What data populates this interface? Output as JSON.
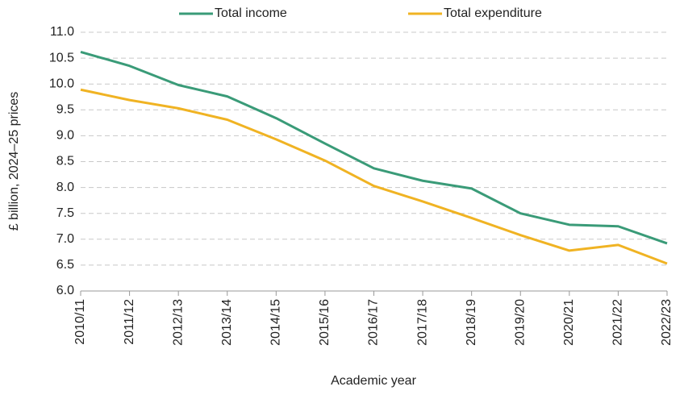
{
  "chart_data": {
    "type": "line",
    "x_label": "Academic year",
    "y_label": "£ billion, 2024–25 prices",
    "categories": [
      "2010/11",
      "2011/12",
      "2012/13",
      "2013/14",
      "2014/15",
      "2015/16",
      "2016/17",
      "2017/18",
      "2018/19",
      "2019/20",
      "2020/21",
      "2021/22",
      "2022/23"
    ],
    "series": [
      {
        "name": "Total income",
        "color": "#3a9b78",
        "values": [
          10.62,
          10.35,
          9.98,
          9.76,
          9.34,
          8.85,
          8.37,
          8.13,
          7.98,
          7.5,
          7.28,
          7.25,
          6.92
        ]
      },
      {
        "name": "Total expenditure",
        "color": "#f0b323",
        "values": [
          9.89,
          9.69,
          9.53,
          9.31,
          8.93,
          8.52,
          8.03,
          7.73,
          7.41,
          7.08,
          6.78,
          6.89,
          6.53
        ]
      }
    ],
    "ylim": [
      6,
      11
    ],
    "yticks": [
      {
        "value": 6,
        "label": "6.0"
      },
      6.5,
      {
        "value": 7,
        "label": "7.0"
      },
      7.5,
      {
        "value": 8,
        "label": "8.0"
      },
      8.5,
      {
        "value": 9,
        "label": "9.0"
      },
      9.5,
      {
        "value": 10,
        "label": "10.0"
      },
      10.5,
      {
        "value": 11,
        "label": "11.0"
      }
    ],
    "grid": true,
    "legend": "top"
  }
}
